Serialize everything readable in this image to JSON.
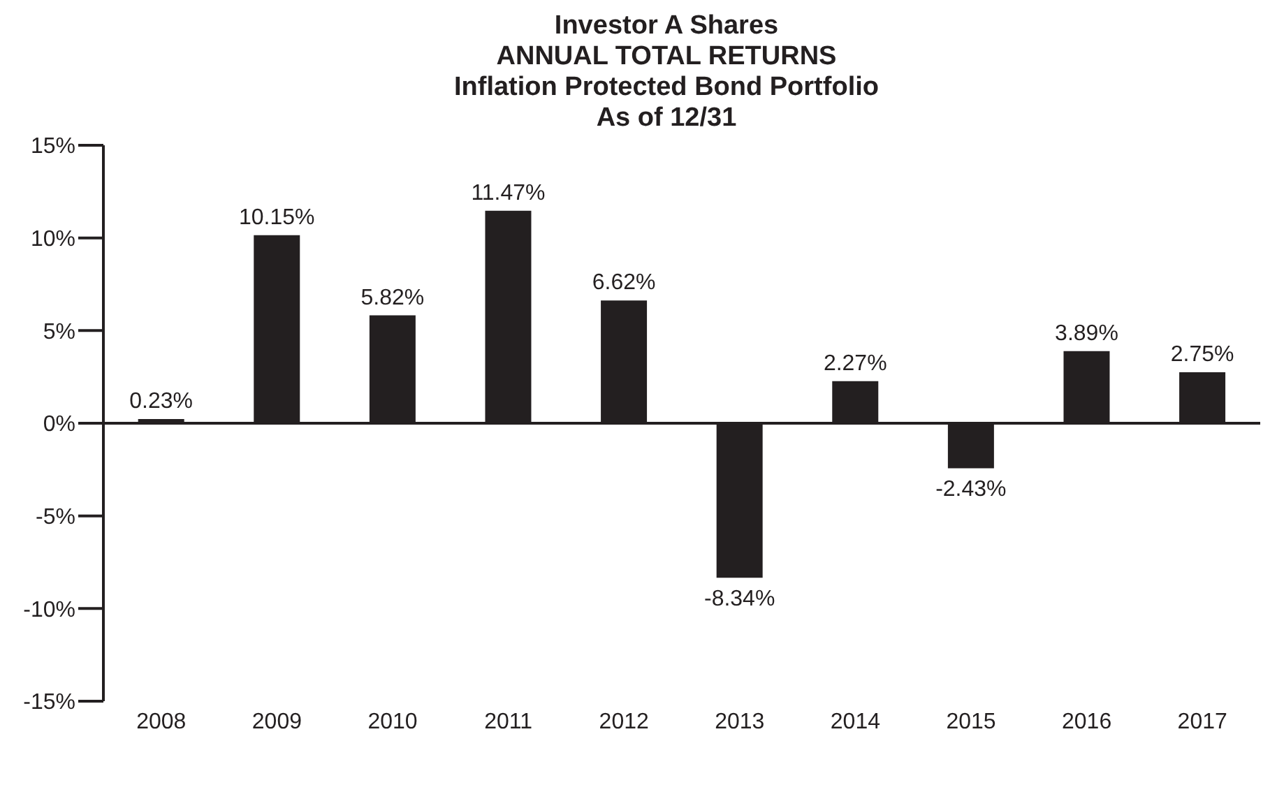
{
  "chart_data": {
    "type": "bar",
    "title": "Investor A Shares\nANNUAL TOTAL RETURNS\nInflation Protected Bond Portfolio\nAs of 12/31",
    "categories": [
      "2008",
      "2009",
      "2010",
      "2011",
      "2012",
      "2013",
      "2014",
      "2015",
      "2016",
      "2017"
    ],
    "values": [
      0.23,
      10.15,
      5.82,
      11.47,
      6.62,
      -8.34,
      2.27,
      -2.43,
      3.89,
      2.75
    ],
    "value_labels": [
      "0.23%",
      "10.15%",
      "5.82%",
      "11.47%",
      "6.62%",
      "-8.34%",
      "2.27%",
      "-2.43%",
      "3.89%",
      "2.75%"
    ],
    "color": "#231f20",
    "ylim": [
      -15,
      15
    ],
    "yticks": [
      {
        "value": -15,
        "label": "-15%"
      },
      {
        "value": -10,
        "label": "-10%"
      },
      {
        "value": -5,
        "label": "-5%"
      },
      {
        "value": 0,
        "label": "0%"
      },
      {
        "value": 5,
        "label": "5%"
      },
      {
        "value": 10,
        "label": "10%"
      },
      {
        "value": 15,
        "label": "15%"
      }
    ]
  }
}
